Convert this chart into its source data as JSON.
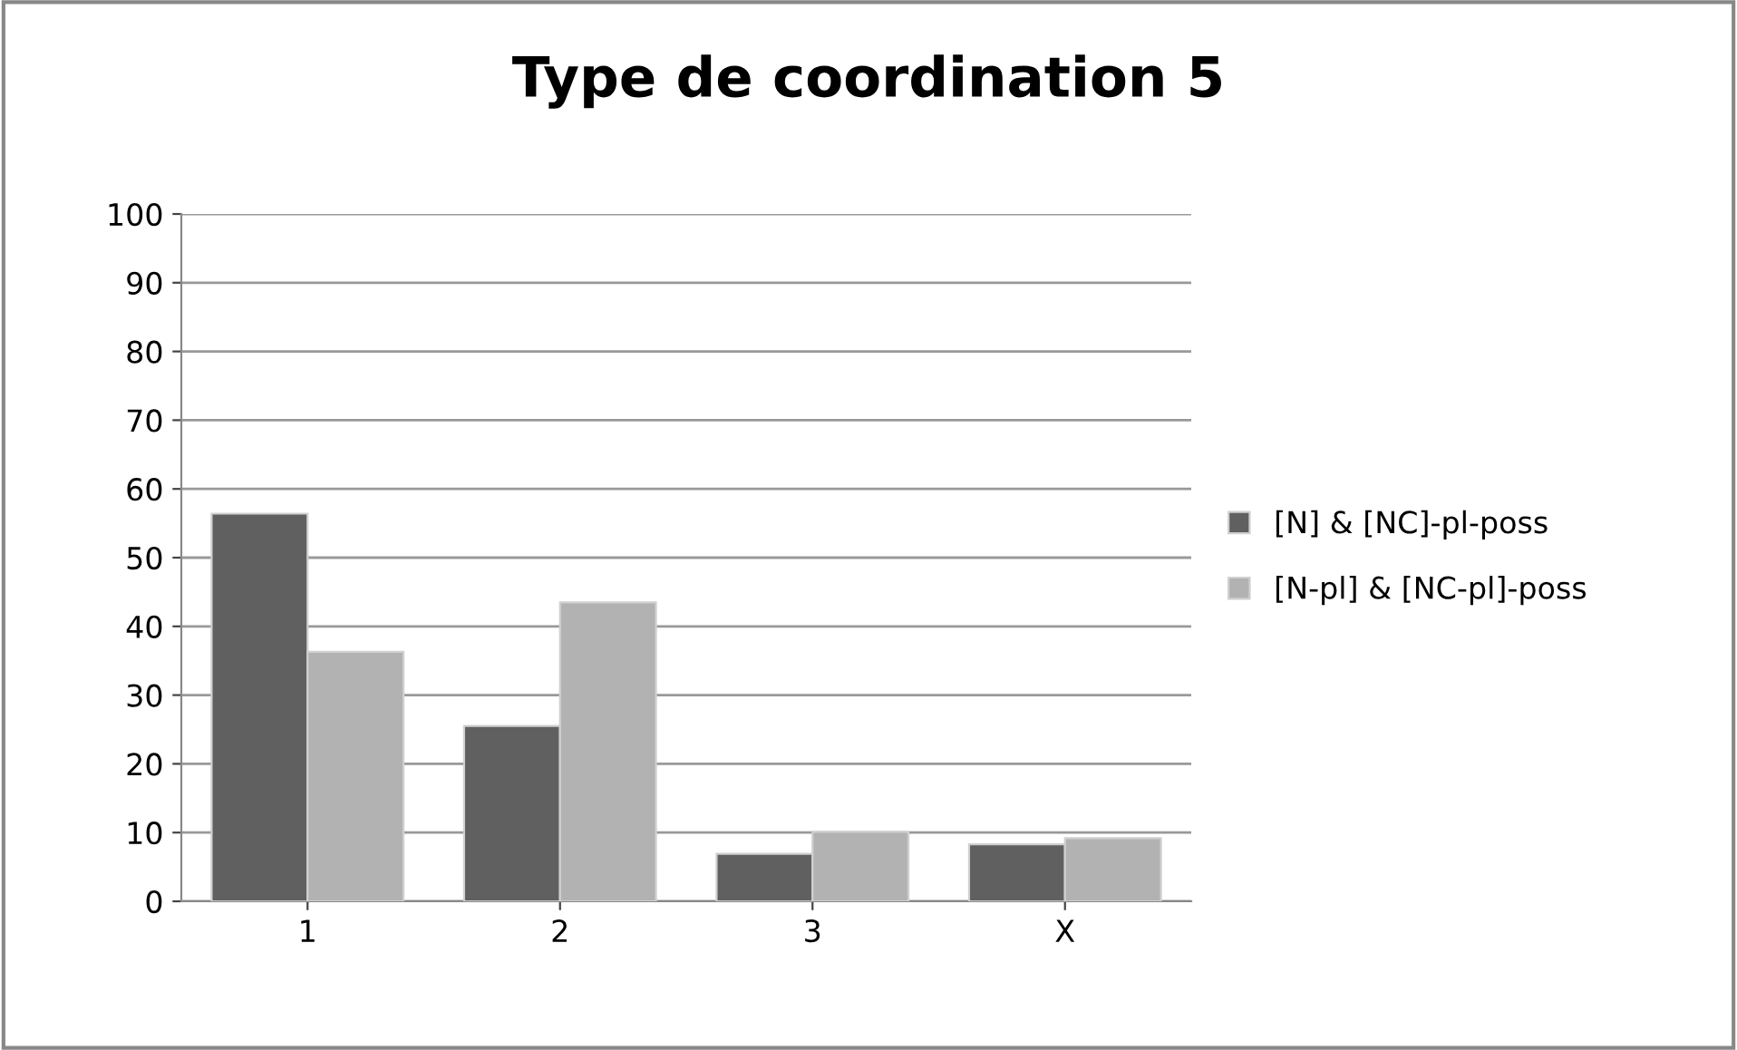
{
  "chart_data": {
    "type": "bar",
    "title": "Type de coordination 5",
    "categories": [
      "1",
      "2",
      "3",
      "X"
    ],
    "series": [
      {
        "name": "[N] & [NC]-pl-poss",
        "color": "#606060",
        "values": [
          56.4,
          25.5,
          6.9,
          8.3
        ]
      },
      {
        "name": "[N-pl] & [NC-pl]-poss",
        "color": "#b2b2b2",
        "values": [
          36.3,
          43.5,
          10.1,
          9.2
        ]
      }
    ],
    "ylim": [
      0,
      100
    ],
    "yticks": [
      0,
      10,
      20,
      30,
      40,
      50,
      60,
      70,
      80,
      90,
      100
    ],
    "grid": "y",
    "legend": "right"
  }
}
